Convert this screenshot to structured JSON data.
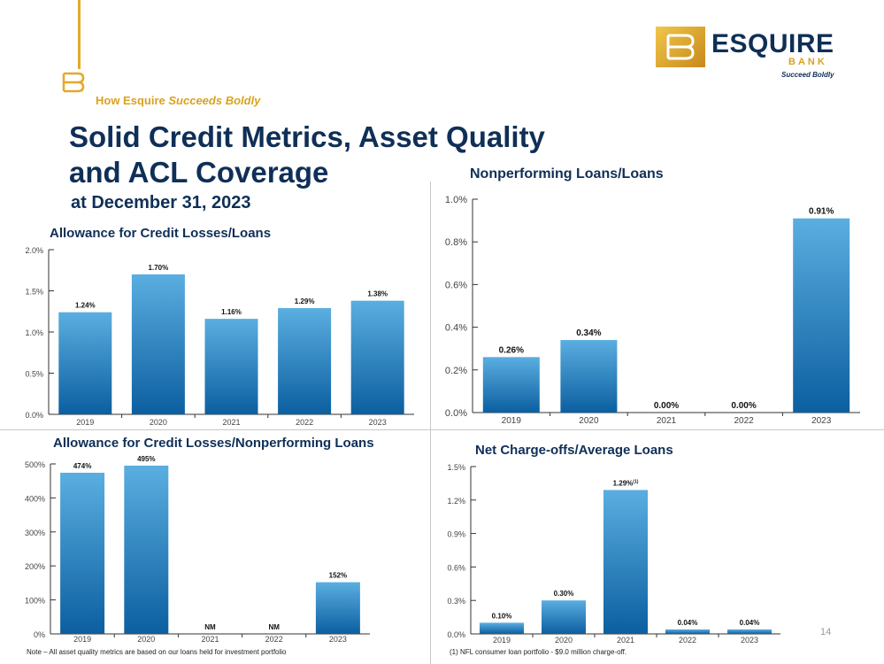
{
  "header": {
    "tagline_prefix": "How Esquire",
    "tagline_emph": "Succeeds Boldly",
    "title_line1": "Solid Credit Metrics, Asset Quality",
    "title_line2": "and ACL Coverage",
    "subtitle": "at December 31, 2023"
  },
  "logo": {
    "monogram": "EB",
    "word": "ESQUIRE",
    "bank": "BANK",
    "tagline": "Succeed Boldly"
  },
  "colors": {
    "navy": "#0f2f57",
    "gold": "#d9a21f",
    "bar_top": "#5aaee0",
    "bar_bottom": "#0c5fa0"
  },
  "footnotes": {
    "left": "Note – All asset quality metrics are based on our loans held for investment portfolio",
    "right": "(1) NFL consumer loan portfolio - $9.0 million charge-off."
  },
  "page_number": "14",
  "chart_data": [
    {
      "type": "bar",
      "title": "Allowance for Credit Losses/Loans",
      "categories": [
        "2019",
        "2020",
        "2021",
        "2022",
        "2023"
      ],
      "values": [
        1.24,
        1.7,
        1.16,
        1.29,
        1.38
      ],
      "labels": [
        "1.24%",
        "1.70%",
        "1.16%",
        "1.29%",
        "1.38%"
      ],
      "yticks": [
        "0.0%",
        "0.5%",
        "1.0%",
        "1.5%",
        "2.0%"
      ],
      "ylim": [
        0,
        2.0
      ]
    },
    {
      "type": "bar",
      "title": "Nonperforming Loans/Loans",
      "categories": [
        "2019",
        "2020",
        "2021",
        "2022",
        "2023"
      ],
      "values": [
        0.26,
        0.34,
        0.0,
        0.0,
        0.91
      ],
      "labels": [
        "0.26%",
        "0.34%",
        "0.00%",
        "0.00%",
        "0.91%"
      ],
      "yticks": [
        "0.0%",
        "0.2%",
        "0.4%",
        "0.6%",
        "0.8%",
        "1.0%"
      ],
      "ylim": [
        0,
        1.0
      ]
    },
    {
      "type": "bar",
      "title": "Allowance for Credit Losses/Nonperforming Loans",
      "categories": [
        "2019",
        "2020",
        "2021",
        "2022",
        "2023"
      ],
      "values": [
        474,
        495,
        0,
        0,
        152
      ],
      "labels": [
        "474%",
        "495%",
        "NM",
        "NM",
        "152%"
      ],
      "yticks": [
        "0%",
        "100%",
        "200%",
        "300%",
        "400%",
        "500%"
      ],
      "ylim": [
        0,
        500
      ]
    },
    {
      "type": "bar",
      "title": "Net Charge-offs/Average Loans",
      "categories": [
        "2019",
        "2020",
        "2021",
        "2022",
        "2023"
      ],
      "values": [
        0.1,
        0.3,
        1.29,
        0.04,
        0.04
      ],
      "labels": [
        "0.10%",
        "0.30%",
        "1.29%",
        "0.04%",
        "0.04%"
      ],
      "label_superscript": [
        "",
        "",
        "(1)",
        "",
        ""
      ],
      "yticks": [
        "0.0%",
        "0.3%",
        "0.6%",
        "0.9%",
        "1.2%",
        "1.5%"
      ],
      "ylim": [
        0,
        1.5
      ]
    }
  ]
}
